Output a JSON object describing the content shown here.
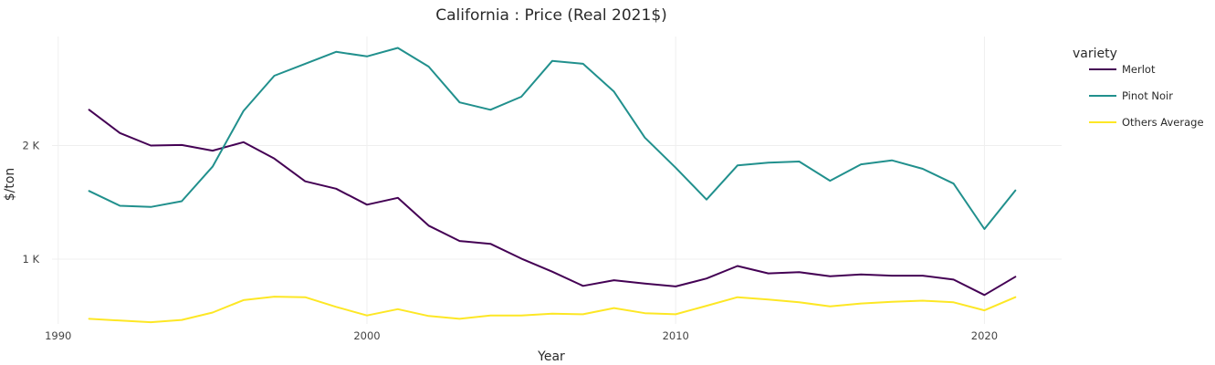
{
  "chart_data": {
    "type": "line",
    "title": "California : Price (Real 2021$)",
    "xlabel": "Year",
    "ylabel": "$/ton",
    "xlim": [
      1989.8,
      2022.5
    ],
    "ylim": [
      430,
      2960
    ],
    "x_ticks": [
      {
        "value": 1990,
        "label": "1990"
      },
      {
        "value": 2000,
        "label": "2000"
      },
      {
        "value": 2010,
        "label": "2010"
      },
      {
        "value": 2020,
        "label": "2020"
      }
    ],
    "y_ticks": [
      {
        "value": 1000,
        "label": "1 K"
      },
      {
        "value": 2000,
        "label": "2 K"
      }
    ],
    "grid": true,
    "legend": {
      "title": "variety",
      "position": "top-right"
    },
    "x": [
      1991,
      1992,
      1993,
      1994,
      1995,
      1996,
      1997,
      1998,
      1999,
      2000,
      2001,
      2002,
      2003,
      2004,
      2005,
      2006,
      2007,
      2008,
      2009,
      2010,
      2011,
      2012,
      2013,
      2014,
      2015,
      2016,
      2017,
      2018,
      2019,
      2020,
      2021
    ],
    "series": [
      {
        "name": "Merlot",
        "color": "#440154",
        "values": [
          2315,
          2110,
          2000,
          2005,
          1955,
          2030,
          1885,
          1685,
          1620,
          1480,
          1540,
          1295,
          1160,
          1135,
          1005,
          890,
          765,
          815,
          785,
          760,
          830,
          940,
          875,
          885,
          850,
          865,
          855,
          855,
          820,
          685,
          845
        ]
      },
      {
        "name": "Pinot Noir",
        "color": "#21908d",
        "values": [
          1600,
          1470,
          1460,
          1510,
          1815,
          2305,
          2615,
          2720,
          2825,
          2785,
          2860,
          2695,
          2380,
          2315,
          2430,
          2745,
          2720,
          2475,
          2070,
          1805,
          1525,
          1825,
          1850,
          1860,
          1690,
          1835,
          1870,
          1795,
          1665,
          1265,
          1605
        ]
      },
      {
        "name": "Others Average",
        "color": "#fde725",
        "values": [
          475,
          460,
          445,
          465,
          530,
          640,
          670,
          665,
          580,
          505,
          560,
          500,
          475,
          505,
          505,
          520,
          515,
          570,
          525,
          515,
          590,
          665,
          645,
          620,
          585,
          610,
          625,
          635,
          620,
          550,
          665
        ]
      }
    ]
  }
}
